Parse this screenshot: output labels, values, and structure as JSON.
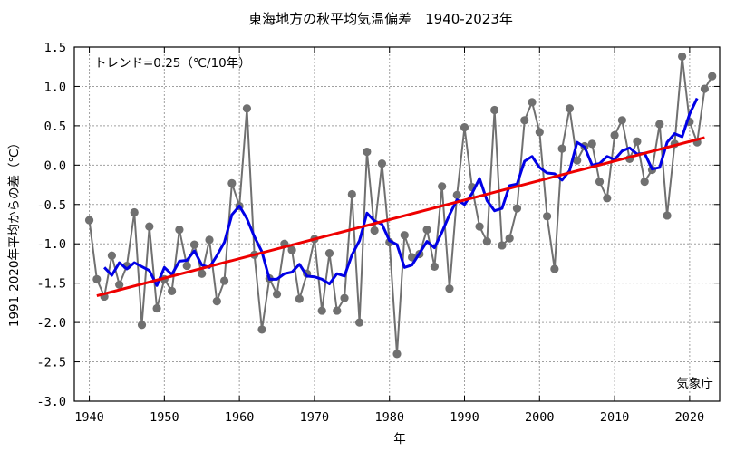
{
  "chart_data": {
    "type": "line",
    "title": "東海地方の秋平均気温偏差　1940-2023年",
    "xlabel": "年",
    "ylabel": "1991-2020年平均からの差（℃）",
    "xlim": [
      1938,
      2024
    ],
    "ylim": [
      -3.0,
      1.5
    ],
    "x_ticks": [
      1940,
      1950,
      1960,
      1970,
      1980,
      1990,
      2000,
      2010,
      2020
    ],
    "y_ticks": [
      -3.0,
      -2.5,
      -2.0,
      -1.5,
      -1.0,
      -0.5,
      0.0,
      0.5,
      1.0,
      1.5
    ],
    "grid": true,
    "trend_label": "トレンド=0.25（℃/10年）",
    "source_label": "気象庁",
    "colors": {
      "annual": "#707070",
      "moving_average": "#0000e6",
      "trend": "#ee0000",
      "grid": "#a0a0a0"
    },
    "series": [
      {
        "key": "annual",
        "start_year": 1940,
        "values": [
          -0.7,
          -1.45,
          -1.67,
          -1.15,
          -1.52,
          -1.28,
          -0.6,
          -2.03,
          -0.78,
          -1.82,
          -1.45,
          -1.6,
          -0.82,
          -1.28,
          -1.01,
          -1.38,
          -0.95,
          -1.73,
          -1.47,
          -0.23,
          -0.52,
          0.72,
          -1.14,
          -2.09,
          -1.44,
          -1.64,
          -1.0,
          -1.08,
          -1.7,
          -1.38,
          -0.94,
          -1.85,
          -1.12,
          -1.85,
          -1.69,
          -0.37,
          -2.0,
          0.17,
          -0.83,
          0.02,
          -0.98,
          -2.4,
          -0.89,
          -1.17,
          -1.13,
          -0.82,
          -1.29,
          -0.27,
          -1.57,
          -0.38,
          0.48,
          -0.28,
          -0.78,
          -0.97,
          0.7,
          -1.02,
          -0.93,
          -0.55,
          0.57,
          0.8,
          0.42,
          -0.65,
          -1.32,
          0.21,
          0.72,
          0.06,
          0.24,
          0.27,
          -0.21,
          -0.42,
          0.38,
          0.57,
          0.08,
          0.3,
          -0.21,
          -0.06,
          0.52,
          -0.64,
          0.27,
          1.38,
          0.55,
          0.29,
          0.97,
          1.13
        ]
      },
      {
        "key": "moving_average",
        "start_year": 1942,
        "values": [
          -1.3,
          -1.4,
          -1.24,
          -1.32,
          -1.24,
          -1.29,
          -1.34,
          -1.53,
          -1.3,
          -1.39,
          -1.22,
          -1.21,
          -1.09,
          -1.27,
          -1.3,
          -1.15,
          -0.98,
          -0.63,
          -0.52,
          -0.68,
          -0.91,
          -1.1,
          -1.45,
          -1.45,
          -1.38,
          -1.36,
          -1.26,
          -1.41,
          -1.42,
          -1.45,
          -1.51,
          -1.38,
          -1.41,
          -1.14,
          -0.96,
          -0.61,
          -0.71,
          -0.75,
          -0.96,
          -1.01,
          -1.3,
          -1.27,
          -1.12,
          -0.97,
          -1.05,
          -0.85,
          -0.63,
          -0.44,
          -0.5,
          -0.36,
          -0.17,
          -0.45,
          -0.58,
          -0.55,
          -0.26,
          -0.24,
          0.05,
          0.11,
          -0.03,
          -0.1,
          -0.11,
          -0.19,
          -0.07,
          0.29,
          0.23,
          0.0,
          0.02,
          0.11,
          0.07,
          0.18,
          0.22,
          0.14,
          0.15,
          -0.05,
          -0.03,
          0.29,
          0.4,
          0.36,
          0.65,
          0.85
        ]
      },
      {
        "key": "trend",
        "x": [
          1941,
          2022
        ],
        "values": [
          -1.66,
          0.35
        ]
      }
    ]
  }
}
